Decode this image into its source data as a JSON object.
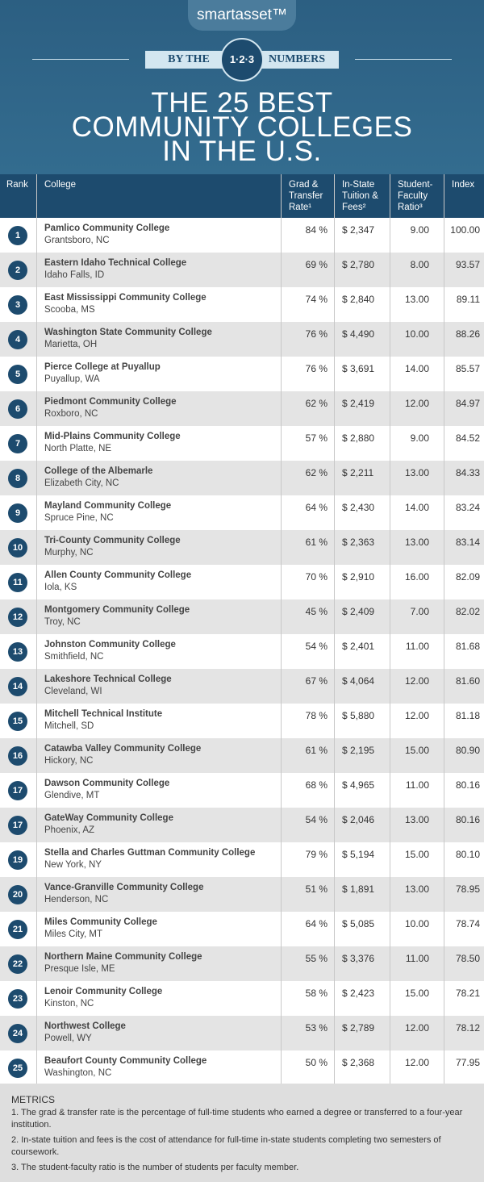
{
  "header": {
    "logo": "smartasset™",
    "by_the": "BY THE",
    "badge": "1·2·3",
    "numbers": "NUMBERS",
    "title_lines": [
      "THE 25 BEST",
      "COMMUNITY COLLEGES",
      "IN THE U.S."
    ]
  },
  "table": {
    "columns": [
      [
        "Rank"
      ],
      [
        "College"
      ],
      [
        "Grad &",
        "Transfer",
        "Rate¹"
      ],
      [
        "In-State",
        "Tuition &",
        "Fees²"
      ],
      [
        "Student-",
        "Faculty",
        "Ratio³"
      ],
      [
        "Index"
      ]
    ],
    "rows": [
      [
        "1",
        "Pamlico Community College",
        "Grantsboro, NC",
        "84 %",
        "$ 2,347",
        "9.00",
        "100.00"
      ],
      [
        "2",
        "Eastern Idaho Technical College",
        "Idaho Falls, ID",
        "69 %",
        "$ 2,780",
        "8.00",
        "93.57"
      ],
      [
        "3",
        "East Mississippi Community College",
        "Scooba, MS",
        "74 %",
        "$ 2,840",
        "13.00",
        "89.11"
      ],
      [
        "4",
        "Washington State Community College",
        "Marietta, OH",
        "76 %",
        "$ 4,490",
        "10.00",
        "88.26"
      ],
      [
        "5",
        "Pierce College at Puyallup",
        "Puyallup, WA",
        "76 %",
        "$ 3,691",
        "14.00",
        "85.57"
      ],
      [
        "6",
        "Piedmont Community College",
        "Roxboro, NC",
        "62 %",
        "$ 2,419",
        "12.00",
        "84.97"
      ],
      [
        "7",
        "Mid-Plains Community College",
        "North Platte, NE",
        "57 %",
        "$ 2,880",
        "9.00",
        "84.52"
      ],
      [
        "8",
        "College of the Albemarle",
        "Elizabeth City, NC",
        "62 %",
        "$ 2,211",
        "13.00",
        "84.33"
      ],
      [
        "9",
        "Mayland Community College",
        "Spruce Pine, NC",
        "64 %",
        "$ 2,430",
        "14.00",
        "83.24"
      ],
      [
        "10",
        "Tri-County Community College",
        "Murphy, NC",
        "61 %",
        "$ 2,363",
        "13.00",
        "83.14"
      ],
      [
        "11",
        "Allen County Community College",
        "Iola, KS",
        "70 %",
        "$ 2,910",
        "16.00",
        "82.09"
      ],
      [
        "12",
        "Montgomery Community College",
        "Troy, NC",
        "45 %",
        "$ 2,409",
        "7.00",
        "82.02"
      ],
      [
        "13",
        "Johnston Community College",
        "Smithfield, NC",
        "54 %",
        "$ 2,401",
        "11.00",
        "81.68"
      ],
      [
        "14",
        "Lakeshore Technical College",
        "Cleveland, WI",
        "67 %",
        "$ 4,064",
        "12.00",
        "81.60"
      ],
      [
        "15",
        "Mitchell Technical Institute",
        "Mitchell, SD",
        "78 %",
        "$ 5,880",
        "12.00",
        "81.18"
      ],
      [
        "16",
        "Catawba Valley Community College",
        "Hickory, NC",
        "61 %",
        "$ 2,195",
        "15.00",
        "80.90"
      ],
      [
        "17",
        "Dawson Community College",
        "Glendive, MT",
        "68 %",
        "$ 4,965",
        "11.00",
        "80.16"
      ],
      [
        "17",
        "GateWay Community College",
        "Phoenix, AZ",
        "54 %",
        "$ 2,046",
        "13.00",
        "80.16"
      ],
      [
        "19",
        "Stella and Charles Guttman Community College",
        "New York, NY",
        "79 %",
        "$ 5,194",
        "15.00",
        "80.10"
      ],
      [
        "20",
        "Vance-Granville Community College",
        "Henderson, NC",
        "51 %",
        "$ 1,891",
        "13.00",
        "78.95"
      ],
      [
        "21",
        "Miles Community College",
        "Miles City, MT",
        "64 %",
        "$ 5,085",
        "10.00",
        "78.74"
      ],
      [
        "22",
        "Northern Maine Community College",
        "Presque Isle, ME",
        "55 %",
        "$ 3,376",
        "11.00",
        "78.50"
      ],
      [
        "23",
        "Lenoir Community College",
        "Kinston, NC",
        "58 %",
        "$ 2,423",
        "15.00",
        "78.21"
      ],
      [
        "24",
        "Northwest College",
        "Powell, WY",
        "53 %",
        "$ 2,789",
        "12.00",
        "78.12"
      ],
      [
        "25",
        "Beaufort County Community College",
        "Washington, NC",
        "50 %",
        "$ 2,368",
        "12.00",
        "77.95"
      ]
    ]
  },
  "metrics": {
    "title": "METRICS",
    "notes": [
      "1.  The grad & transfer rate is the percentage of full-time students who earned a degree or transferred to a four-year institution.",
      "2. In-state tuition and fees is the cost of attendance for full-time in-state students completing two semesters of coursework.",
      "3. The student-faculty ratio is the number of students per faculty member."
    ]
  }
}
